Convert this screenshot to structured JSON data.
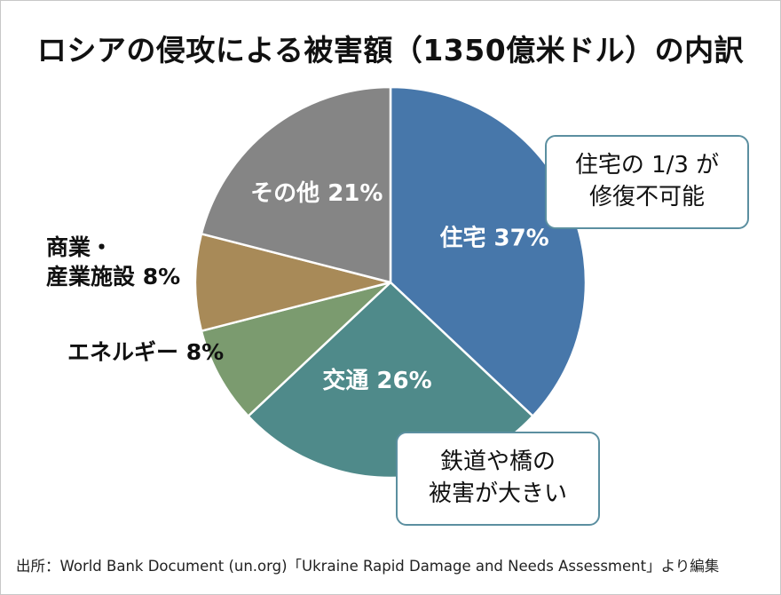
{
  "chart_data": {
    "type": "pie",
    "title": "ロシアの侵攻による被害額（1350億米ドル）の内訳",
    "categories": [
      "住宅",
      "交通",
      "エネルギー",
      "商業・産業施設",
      "その他"
    ],
    "values": [
      37,
      26,
      8,
      8,
      21
    ],
    "unit": "%",
    "slice_labels": [
      "住宅 37%",
      "交通 26%",
      "エネルギー 8%",
      "商業・産業施設 8%",
      "その他 21%"
    ],
    "colors": [
      "#4777aa",
      "#4f8a8a",
      "#7b9b6f",
      "#a88a58",
      "#858585"
    ],
    "annotations": [
      {
        "line1": "住宅の 1/3 が",
        "line2": "修復不可能"
      },
      {
        "line1": "鉄道や橋の",
        "line2": "被害が大きい"
      }
    ]
  },
  "labels": {
    "commerce_line1": "商業・",
    "commerce_line2": "産業施設 8%",
    "energy": "エネルギー 8%"
  },
  "source": "出所：World Bank Document (un.org)「Ukraine Rapid Damage and Needs Assessment」より編集"
}
